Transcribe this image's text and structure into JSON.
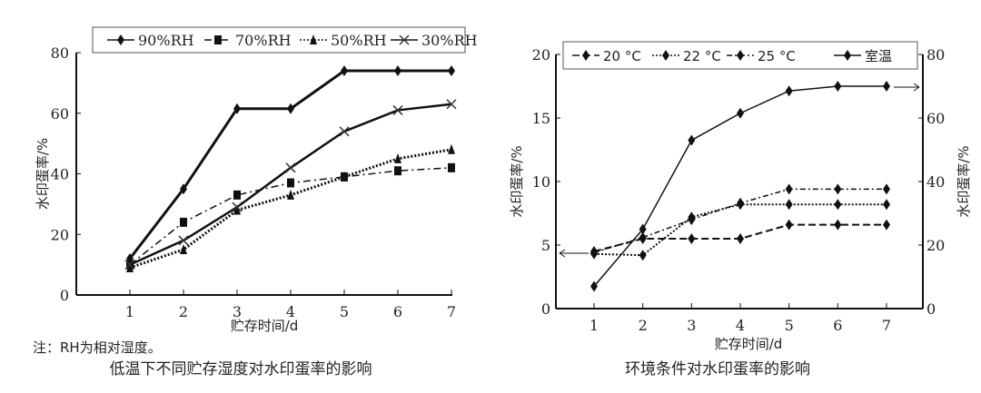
{
  "chart_data": [
    {
      "type": "line",
      "title": "低温下不同贮存湿度对水印蛋率的影响",
      "note": "注：RH为相对湿度。",
      "xlabel": "贮存时间/d",
      "ylabel": "水印蛋率/%",
      "ylim": [
        0,
        80
      ],
      "yticks": [
        0,
        20,
        40,
        60,
        80
      ],
      "x": [
        1,
        2,
        3,
        4,
        5,
        6,
        7
      ],
      "legend": "top",
      "series": [
        {
          "name": "90%RH",
          "marker": "diamond",
          "dash": "",
          "width": 3,
          "values": [
            12,
            35,
            61.5,
            61.5,
            74,
            74,
            74
          ]
        },
        {
          "name": "70%RH",
          "marker": "square",
          "dash": "8,4,2,4",
          "width": 1.5,
          "values": [
            10,
            24,
            33,
            37,
            39,
            41,
            42
          ]
        },
        {
          "name": "50%RH",
          "marker": "triangle",
          "dash": "2,2",
          "width": 3,
          "values": [
            9,
            15,
            28,
            33,
            39,
            45,
            48
          ]
        },
        {
          "name": "30%RH",
          "marker": "x",
          "dash": "",
          "width": 2.5,
          "values": [
            10,
            18,
            29,
            42,
            54,
            61,
            63
          ]
        }
      ]
    },
    {
      "type": "line",
      "title": "环境条件对水印蛋率的影响",
      "xlabel": "贮存时间/d",
      "ylabel": "水印蛋率/%",
      "ylabel_right": "水印蛋率/%",
      "ylim": [
        0,
        20
      ],
      "yticks": [
        0,
        5,
        10,
        15,
        20
      ],
      "ylim_right": [
        0,
        80
      ],
      "yticks_right": [
        0,
        20,
        40,
        60,
        80
      ],
      "x": [
        1,
        2,
        3,
        4,
        5,
        6,
        7
      ],
      "legend": "top",
      "series": [
        {
          "name": "20 °C",
          "axis": "left",
          "marker": "diamond",
          "dash": "8,4",
          "width": 2,
          "values": [
            4.5,
            5.5,
            5.5,
            5.5,
            6.6,
            6.6,
            6.6
          ]
        },
        {
          "name": "22 °C",
          "axis": "left",
          "marker": "diamond",
          "dash": "2,2",
          "width": 2,
          "values": [
            4.3,
            4.2,
            7.2,
            8.2,
            8.2,
            8.2,
            8.2
          ]
        },
        {
          "name": "25 °C",
          "axis": "left",
          "marker": "diamond",
          "dash": "6,3,2,3",
          "width": 1.5,
          "values": [
            4.4,
            5.6,
            7.0,
            8.3,
            9.4,
            9.4,
            9.4
          ]
        },
        {
          "name": "室温",
          "axis": "right",
          "marker": "diamond",
          "dash": "",
          "width": 1.5,
          "values": [
            7,
            25,
            53,
            61.5,
            68.5,
            70,
            70
          ]
        }
      ]
    }
  ]
}
